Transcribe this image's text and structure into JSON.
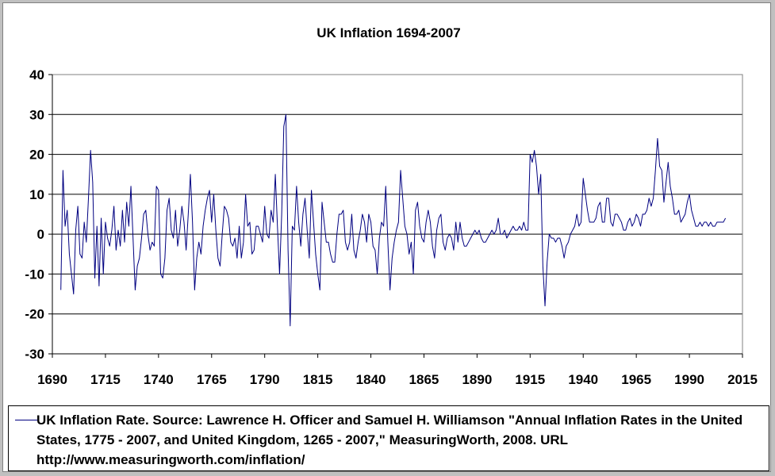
{
  "chart_data": {
    "type": "line",
    "title": "UK Inflation 1694-2007",
    "xlabel": "",
    "ylabel": "",
    "xlim": [
      1690,
      2015
    ],
    "ylim": [
      -30,
      40
    ],
    "x_ticks": [
      "1690",
      "1715",
      "1740",
      "1765",
      "1790",
      "1815",
      "1840",
      "1865",
      "1890",
      "1915",
      "1940",
      "1965",
      "1990",
      "2015"
    ],
    "y_ticks": [
      "40",
      "30",
      "20",
      "10",
      "0",
      "-10",
      "-20",
      "-30"
    ],
    "grid": "horizontal major gridlines",
    "legend_position": "bottom",
    "series": [
      {
        "name": "UK Inflation Rate. Source: Lawrence H. Officer and Samuel H. Williamson \"Annual Inflation Rates in the United States, 1775 - 2007, and United Kingdom, 1265 - 2007,\" MeasuringWorth, 2008. URL http://www.measuringworth.com/inflation/",
        "color": "#000080",
        "points": [
          [
            1694,
            -14
          ],
          [
            1695,
            16
          ],
          [
            1696,
            2
          ],
          [
            1697,
            6
          ],
          [
            1698,
            -5
          ],
          [
            1699,
            -10
          ],
          [
            1700,
            -15
          ],
          [
            1701,
            1
          ],
          [
            1702,
            7
          ],
          [
            1703,
            -5
          ],
          [
            1704,
            -6
          ],
          [
            1705,
            3
          ],
          [
            1706,
            -2
          ],
          [
            1707,
            9
          ],
          [
            1708,
            21
          ],
          [
            1709,
            13
          ],
          [
            1710,
            -11
          ],
          [
            1711,
            2
          ],
          [
            1712,
            -13
          ],
          [
            1713,
            4
          ],
          [
            1714,
            -10
          ],
          [
            1715,
            3
          ],
          [
            1716,
            -1
          ],
          [
            1717,
            -3
          ],
          [
            1718,
            1
          ],
          [
            1719,
            7
          ],
          [
            1720,
            -4
          ],
          [
            1721,
            1
          ],
          [
            1722,
            -3
          ],
          [
            1723,
            6
          ],
          [
            1724,
            -2
          ],
          [
            1725,
            8
          ],
          [
            1726,
            2
          ],
          [
            1727,
            12
          ],
          [
            1728,
            -1
          ],
          [
            1729,
            -14
          ],
          [
            1730,
            -8
          ],
          [
            1731,
            -6
          ],
          [
            1732,
            -1
          ],
          [
            1733,
            5
          ],
          [
            1734,
            6
          ],
          [
            1735,
            0
          ],
          [
            1736,
            -4
          ],
          [
            1737,
            -2
          ],
          [
            1738,
            -3
          ],
          [
            1739,
            12
          ],
          [
            1740,
            11
          ],
          [
            1741,
            -10
          ],
          [
            1742,
            -11
          ],
          [
            1743,
            -6
          ],
          [
            1744,
            6
          ],
          [
            1745,
            9
          ],
          [
            1746,
            1
          ],
          [
            1747,
            -1
          ],
          [
            1748,
            6
          ],
          [
            1749,
            -3
          ],
          [
            1750,
            1
          ],
          [
            1751,
            7
          ],
          [
            1752,
            3
          ],
          [
            1753,
            -4
          ],
          [
            1754,
            5
          ],
          [
            1755,
            15
          ],
          [
            1756,
            3
          ],
          [
            1757,
            -14
          ],
          [
            1758,
            -6
          ],
          [
            1759,
            -2
          ],
          [
            1760,
            -5
          ],
          [
            1761,
            2
          ],
          [
            1762,
            6
          ],
          [
            1763,
            9
          ],
          [
            1764,
            11
          ],
          [
            1765,
            3
          ],
          [
            1766,
            10
          ],
          [
            1767,
            1
          ],
          [
            1768,
            -6
          ],
          [
            1769,
            -8
          ],
          [
            1770,
            0
          ],
          [
            1771,
            7
          ],
          [
            1772,
            6
          ],
          [
            1773,
            4
          ],
          [
            1774,
            -2
          ],
          [
            1775,
            -3
          ],
          [
            1776,
            -1
          ],
          [
            1777,
            -6
          ],
          [
            1778,
            2
          ],
          [
            1779,
            -6
          ],
          [
            1780,
            -2
          ],
          [
            1781,
            10
          ],
          [
            1782,
            2
          ],
          [
            1783,
            3
          ],
          [
            1784,
            -5
          ],
          [
            1785,
            -4
          ],
          [
            1786,
            2
          ],
          [
            1787,
            2
          ],
          [
            1788,
            0
          ],
          [
            1789,
            -2
          ],
          [
            1790,
            7
          ],
          [
            1791,
            0
          ],
          [
            1792,
            -1
          ],
          [
            1793,
            6
          ],
          [
            1794,
            3
          ],
          [
            1795,
            15
          ],
          [
            1796,
            2
          ],
          [
            1797,
            -10
          ],
          [
            1798,
            5
          ],
          [
            1799,
            27
          ],
          [
            1800,
            30
          ],
          [
            1801,
            -4
          ],
          [
            1802,
            -23
          ],
          [
            1803,
            2
          ],
          [
            1804,
            1
          ],
          [
            1805,
            12
          ],
          [
            1806,
            3
          ],
          [
            1807,
            -3
          ],
          [
            1808,
            5
          ],
          [
            1809,
            9
          ],
          [
            1810,
            1
          ],
          [
            1811,
            -6
          ],
          [
            1812,
            11
          ],
          [
            1813,
            3
          ],
          [
            1814,
            -5
          ],
          [
            1815,
            -10
          ],
          [
            1816,
            -14
          ],
          [
            1817,
            8
          ],
          [
            1818,
            3
          ],
          [
            1819,
            -2
          ],
          [
            1820,
            -2
          ],
          [
            1821,
            -5
          ],
          [
            1822,
            -7
          ],
          [
            1823,
            -7
          ],
          [
            1824,
            0
          ],
          [
            1825,
            5
          ],
          [
            1826,
            5
          ],
          [
            1827,
            6
          ],
          [
            1828,
            -2
          ],
          [
            1829,
            -4
          ],
          [
            1830,
            -2
          ],
          [
            1831,
            5
          ],
          [
            1832,
            -4
          ],
          [
            1833,
            -6
          ],
          [
            1834,
            -2
          ],
          [
            1835,
            1
          ],
          [
            1836,
            5
          ],
          [
            1837,
            3
          ],
          [
            1838,
            -2
          ],
          [
            1839,
            5
          ],
          [
            1840,
            3
          ],
          [
            1841,
            -3
          ],
          [
            1842,
            -4
          ],
          [
            1843,
            -10
          ],
          [
            1844,
            -1
          ],
          [
            1845,
            3
          ],
          [
            1846,
            2
          ],
          [
            1847,
            12
          ],
          [
            1848,
            -2
          ],
          [
            1849,
            -14
          ],
          [
            1850,
            -6
          ],
          [
            1851,
            -2
          ],
          [
            1852,
            1
          ],
          [
            1853,
            3
          ],
          [
            1854,
            16
          ],
          [
            1855,
            9
          ],
          [
            1856,
            2
          ],
          [
            1857,
            0
          ],
          [
            1858,
            -5
          ],
          [
            1859,
            -2
          ],
          [
            1860,
            -10
          ],
          [
            1861,
            6
          ],
          [
            1862,
            8
          ],
          [
            1863,
            2
          ],
          [
            1864,
            -1
          ],
          [
            1865,
            -2
          ],
          [
            1866,
            3
          ],
          [
            1867,
            6
          ],
          [
            1868,
            3
          ],
          [
            1869,
            -3
          ],
          [
            1870,
            -6
          ],
          [
            1871,
            1
          ],
          [
            1872,
            4
          ],
          [
            1873,
            5
          ],
          [
            1874,
            -2
          ],
          [
            1875,
            -4
          ],
          [
            1876,
            -1
          ],
          [
            1877,
            0
          ],
          [
            1878,
            -1
          ],
          [
            1879,
            -4
          ],
          [
            1880,
            3
          ],
          [
            1881,
            -2
          ],
          [
            1882,
            3
          ],
          [
            1883,
            -1
          ],
          [
            1884,
            -3
          ],
          [
            1885,
            -3
          ],
          [
            1886,
            -2
          ],
          [
            1887,
            -1
          ],
          [
            1888,
            0
          ],
          [
            1889,
            1
          ],
          [
            1890,
            0
          ],
          [
            1891,
            1
          ],
          [
            1892,
            -1
          ],
          [
            1893,
            -2
          ],
          [
            1894,
            -2
          ],
          [
            1895,
            -1
          ],
          [
            1896,
            0
          ],
          [
            1897,
            1
          ],
          [
            1898,
            0
          ],
          [
            1899,
            1
          ],
          [
            1900,
            4
          ],
          [
            1901,
            0
          ],
          [
            1902,
            0
          ],
          [
            1903,
            1
          ],
          [
            1904,
            -1
          ],
          [
            1905,
            0
          ],
          [
            1906,
            1
          ],
          [
            1907,
            2
          ],
          [
            1908,
            1
          ],
          [
            1909,
            1
          ],
          [
            1910,
            2
          ],
          [
            1911,
            1
          ],
          [
            1912,
            3
          ],
          [
            1913,
            1
          ],
          [
            1914,
            1
          ],
          [
            1915,
            20
          ],
          [
            1916,
            18
          ],
          [
            1917,
            21
          ],
          [
            1918,
            17
          ],
          [
            1919,
            10
          ],
          [
            1920,
            15
          ],
          [
            1921,
            -8
          ],
          [
            1922,
            -18
          ],
          [
            1923,
            -7
          ],
          [
            1924,
            0
          ],
          [
            1925,
            -1
          ],
          [
            1926,
            -1
          ],
          [
            1927,
            -2
          ],
          [
            1928,
            -1
          ],
          [
            1929,
            -1
          ],
          [
            1930,
            -3
          ],
          [
            1931,
            -6
          ],
          [
            1932,
            -3
          ],
          [
            1933,
            -2
          ],
          [
            1934,
            0
          ],
          [
            1935,
            1
          ],
          [
            1936,
            2
          ],
          [
            1937,
            5
          ],
          [
            1938,
            2
          ],
          [
            1939,
            3
          ],
          [
            1940,
            14
          ],
          [
            1941,
            10
          ],
          [
            1942,
            6
          ],
          [
            1943,
            3
          ],
          [
            1944,
            3
          ],
          [
            1945,
            3
          ],
          [
            1946,
            4
          ],
          [
            1947,
            7
          ],
          [
            1948,
            8
          ],
          [
            1949,
            3
          ],
          [
            1950,
            3
          ],
          [
            1951,
            9
          ],
          [
            1952,
            9
          ],
          [
            1953,
            3
          ],
          [
            1954,
            2
          ],
          [
            1955,
            5
          ],
          [
            1956,
            5
          ],
          [
            1957,
            4
          ],
          [
            1958,
            3
          ],
          [
            1959,
            1
          ],
          [
            1960,
            1
          ],
          [
            1961,
            3
          ],
          [
            1962,
            4
          ],
          [
            1963,
            2
          ],
          [
            1964,
            3
          ],
          [
            1965,
            5
          ],
          [
            1966,
            4
          ],
          [
            1967,
            2
          ],
          [
            1968,
            5
          ],
          [
            1969,
            5
          ],
          [
            1970,
            6
          ],
          [
            1971,
            9
          ],
          [
            1972,
            7
          ],
          [
            1973,
            9
          ],
          [
            1974,
            16
          ],
          [
            1975,
            24
          ],
          [
            1976,
            17
          ],
          [
            1977,
            16
          ],
          [
            1978,
            8
          ],
          [
            1979,
            13
          ],
          [
            1980,
            18
          ],
          [
            1981,
            12
          ],
          [
            1982,
            9
          ],
          [
            1983,
            5
          ],
          [
            1984,
            5
          ],
          [
            1985,
            6
          ],
          [
            1986,
            3
          ],
          [
            1987,
            4
          ],
          [
            1988,
            5
          ],
          [
            1989,
            8
          ],
          [
            1990,
            10
          ],
          [
            1991,
            6
          ],
          [
            1992,
            4
          ],
          [
            1993,
            2
          ],
          [
            1994,
            2
          ],
          [
            1995,
            3
          ],
          [
            1996,
            2
          ],
          [
            1997,
            3
          ],
          [
            1998,
            3
          ],
          [
            1999,
            2
          ],
          [
            2000,
            3
          ],
          [
            2001,
            2
          ],
          [
            2002,
            2
          ],
          [
            2003,
            3
          ],
          [
            2004,
            3
          ],
          [
            2005,
            3
          ],
          [
            2006,
            3
          ],
          [
            2007,
            4
          ]
        ]
      }
    ]
  }
}
